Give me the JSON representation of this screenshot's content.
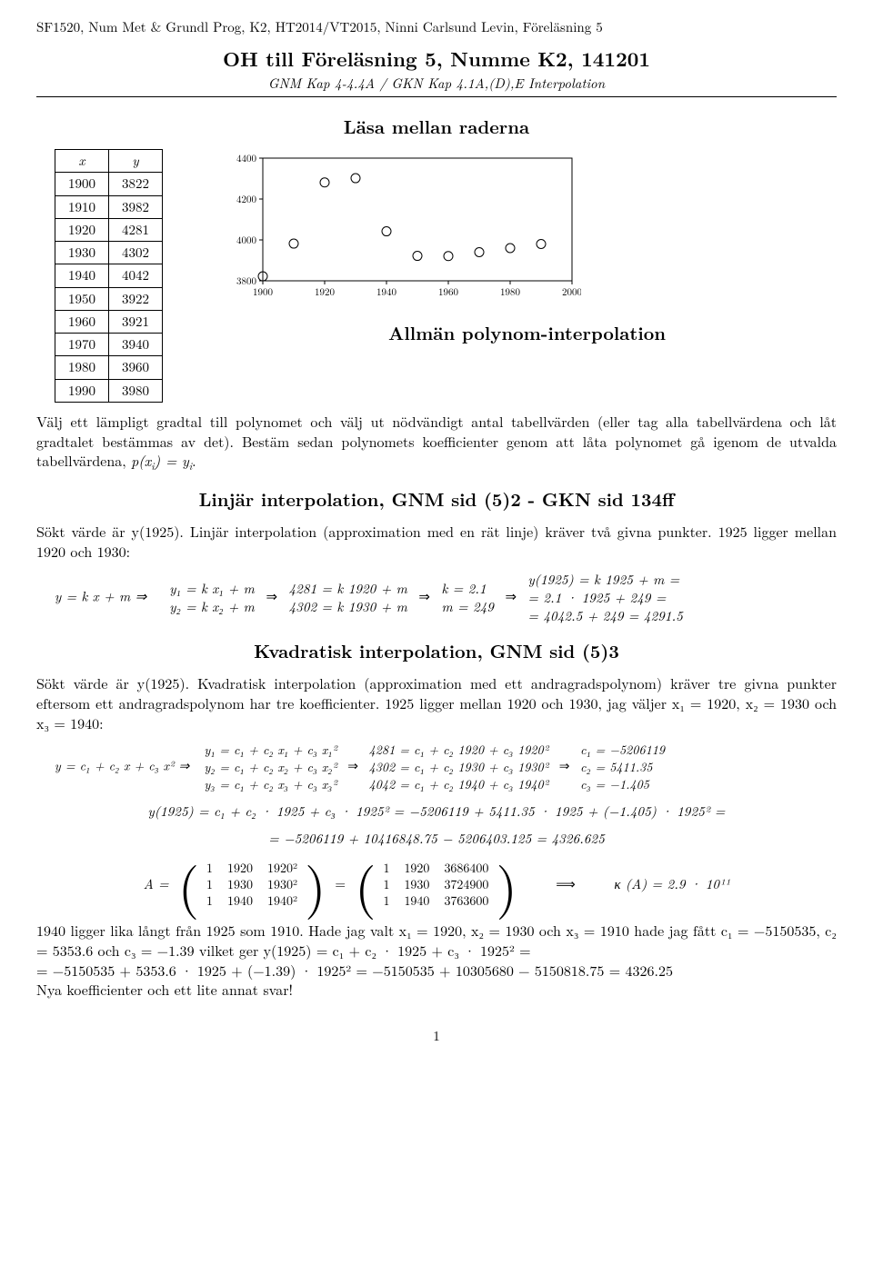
{
  "header": "SF1520, Num Met & Grundl Prog, K2, HT2014/VT2015, Ninni Carlsund Levin, Föreläsning 5",
  "title": "OH till Föreläsning 5, Numme K2, 141201",
  "subtitle": "GNM Kap 4-4.4A / GKN Kap 4.1A,(D),E Interpolation",
  "section1": "Läsa mellan raderna",
  "xy_table": {
    "cols": [
      "x",
      "y"
    ],
    "rows": [
      [
        1900,
        3822
      ],
      [
        1910,
        3982
      ],
      [
        1920,
        4281
      ],
      [
        1930,
        4302
      ],
      [
        1940,
        4042
      ],
      [
        1950,
        3922
      ],
      [
        1960,
        3921
      ],
      [
        1970,
        3940
      ],
      [
        1980,
        3960
      ],
      [
        1990,
        3980
      ]
    ]
  },
  "chart": {
    "type": "scatter",
    "xlim": [
      1900,
      2000
    ],
    "ylim": [
      3800,
      4400
    ],
    "xticks": [
      1900,
      1920,
      1940,
      1960,
      1980,
      2000
    ],
    "yticks": [
      3800,
      4000,
      4200,
      4400
    ],
    "tick_fontsize": 11,
    "marker": "circle-open",
    "marker_size": 5,
    "marker_color": "#000000",
    "axis_color": "#000000",
    "background_color": "#ffffff",
    "points": [
      [
        1900,
        3822
      ],
      [
        1910,
        3982
      ],
      [
        1920,
        4281
      ],
      [
        1930,
        4302
      ],
      [
        1940,
        4042
      ],
      [
        1950,
        3922
      ],
      [
        1960,
        3921
      ],
      [
        1970,
        3940
      ],
      [
        1980,
        3960
      ],
      [
        1990,
        3980
      ]
    ]
  },
  "section2": "Allmän polynom-interpolation",
  "para1a": "Välj ett lämpligt gradtal till polynomet och välj ut nödvändigt antal tabellvärden (eller tag alla tabellvärdena och låt gradtalet bestämmas av det). Bestäm sedan polynomets koefficienter genom att låta polynomet gå igenom de utvalda tabellvärdena, ",
  "para1b": ".",
  "section3": "Linjär interpolation, GNM sid (5)2 - GKN sid 134ff",
  "para2": "Sökt värde är y(1925). Linjär interpolation (approximation med en rät linje) kräver två givna punkter. 1925 ligger mellan 1920 och 1930:",
  "lin_eq": {
    "base": "y = k x + m ⇒",
    "sys1a": "y₁ = k x₁ + m",
    "sys1b": "y₂ = k x₂ + m",
    "sys2a": "4281 = k 1920 + m",
    "sys2b": "4302 = k 1930 + m",
    "sol1": "k = 2.1",
    "sol2": "m = 249",
    "res1": "y(1925) = k 1925 + m =",
    "res2": "= 2.1 · 1925 + 249 =",
    "res3": "= 4042.5 + 249 = 4291.5"
  },
  "section4": "Kvadratisk interpolation, GNM sid (5)3",
  "para3": "Sökt värde är y(1925). Kvadratisk interpolation (approximation med ett andragradspolynom) kräver tre givna punkter eftersom ett andragradspolynom har tre koefficienter. 1925 ligger mellan 1920 och 1930, jag väljer x₁ = 1920, x₂ = 1930 och x₃ = 1940:",
  "quad_eq": {
    "base": "y = c₁ + c₂ x + c₃ x² ⇒",
    "sys_a": [
      "y₁ = c₁ + c₂ x₁ + c₃ x₁²",
      "y₂ = c₁ + c₂ x₂ + c₃ x₂²",
      "y₃ = c₁ + c₂ x₃ + c₃ x₃²"
    ],
    "sys_b": [
      "4281 = c₁ + c₂ 1920 + c₃ 1920²",
      "4302 = c₁ + c₂ 1930 + c₃ 1930²",
      "4042 = c₁ + c₂ 1940 + c₃ 1940²"
    ],
    "sol": [
      "c₁ = −5206119",
      "c₂ = 5411.35",
      "c₃ = −1.405"
    ]
  },
  "quad_step1": "y(1925) = c₁ + c₂ · 1925 + c₃ · 1925² = −5206119 + 5411.35 · 1925 + (−1.405) · 1925² =",
  "quad_step2": "= −5206119 + 10416848.75 − 5206403.125 = 4326.625",
  "matrix": {
    "label": "A =",
    "m1": [
      [
        "1",
        "1920",
        "1920²"
      ],
      [
        "1",
        "1930",
        "1930²"
      ],
      [
        "1",
        "1940",
        "1940²"
      ]
    ],
    "m2": [
      [
        "1",
        "1920",
        "3686400"
      ],
      [
        "1",
        "1930",
        "3724900"
      ],
      [
        "1",
        "1940",
        "3763600"
      ]
    ],
    "arrow": "⟹",
    "kappa": "κ (A) = 2.9 · 10¹¹"
  },
  "para4": "1940 ligger lika långt från 1925 som 1910. Hade jag valt x₁ = 1920, x₂ = 1930 och x₃ = 1910 hade jag fått c₁ = −5150535, c₂ = 5353.6 och c₃ = −1.39 vilket ger y(1925) = c₁ + c₂ · 1925 + c₃ · 1925² =",
  "para4b": "= −5150535 + 5353.6 · 1925 + (−1.39) · 1925² = −5150535 + 10305680 − 5150818.75 = 4326.25",
  "para4c": "Nya koefficienter och ett lite annat svar!",
  "page": "1"
}
